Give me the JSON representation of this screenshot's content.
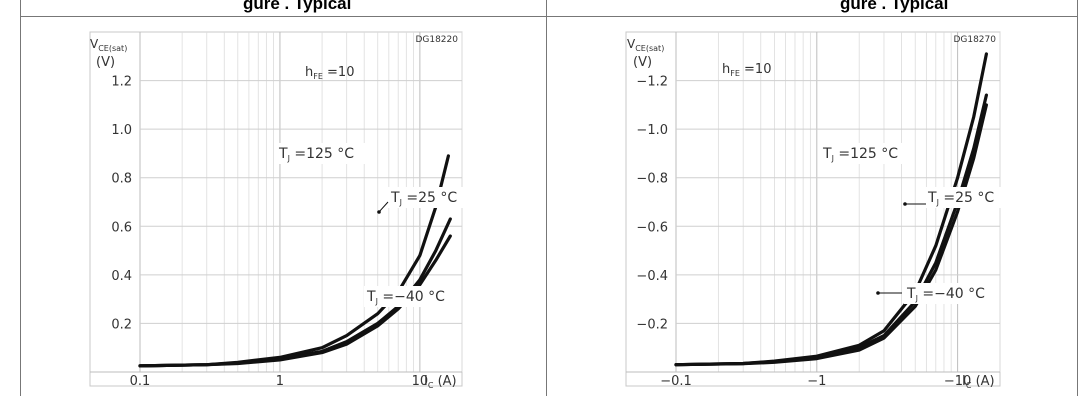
{
  "captions": [
    "gure  . Typical",
    "gure  . Typical"
  ],
  "chart_data": [
    {
      "type": "line",
      "code": "DG18220",
      "ylabel": {
        "main": "V",
        "sub": "CE(sat)",
        "unit": "(V)"
      },
      "xlabel": {
        "main": "I",
        "sub": "C",
        "unit": "(A)"
      },
      "annotation": "h",
      "annotation_sub": "FE",
      "annotation_value": " =10",
      "x_scale": "log",
      "xlim": [
        0.1,
        20
      ],
      "ylim": [
        0,
        1.4
      ],
      "xticks": [
        0.1,
        1,
        10
      ],
      "xtick_labels": [
        "0.1",
        "1",
        "10"
      ],
      "yticks": [
        0.2,
        0.4,
        0.6,
        0.8,
        1.0,
        1.2
      ],
      "ytick_labels": [
        "0.2",
        "0.4",
        "0.6",
        "0.8",
        "1.0",
        "1.2"
      ],
      "grid": true,
      "series": [
        {
          "name": "T_J =125 °C",
          "label_main": "T",
          "label_sub": "J",
          "label_rest": " =125 °C",
          "x": [
            0.1,
            0.3,
            0.5,
            1,
            2,
            3,
            5,
            7,
            10,
            13,
            16
          ],
          "y": [
            0.025,
            0.03,
            0.04,
            0.06,
            0.1,
            0.15,
            0.24,
            0.33,
            0.48,
            0.68,
            0.89
          ]
        },
        {
          "name": "T_J =25 °C",
          "label_main": "T",
          "label_sub": "J",
          "label_rest": " =25 °C",
          "x": [
            0.1,
            0.3,
            0.5,
            1,
            2,
            3,
            5,
            7,
            10,
            13,
            16.5
          ],
          "y": [
            0.025,
            0.03,
            0.037,
            0.055,
            0.085,
            0.125,
            0.2,
            0.27,
            0.38,
            0.5,
            0.63
          ]
        },
        {
          "name": "T_J =-40 °C",
          "label_main": "T",
          "label_sub": "J",
          "label_rest": " =−40 °C",
          "x": [
            0.1,
            0.3,
            0.5,
            1,
            2,
            3,
            5,
            7,
            10,
            13,
            16.5
          ],
          "y": [
            0.025,
            0.03,
            0.035,
            0.05,
            0.08,
            0.115,
            0.19,
            0.26,
            0.36,
            0.46,
            0.56
          ]
        }
      ]
    },
    {
      "type": "line",
      "code": "DG18270",
      "ylabel": {
        "main": "V",
        "sub": "CE(sat)",
        "unit": "(V)"
      },
      "xlabel": {
        "main": "I",
        "sub": "C",
        "unit": "(A)"
      },
      "annotation": "h",
      "annotation_sub": "FE",
      "annotation_value": " =10",
      "x_scale": "log",
      "xlim": [
        -0.1,
        -20
      ],
      "ylim": [
        0,
        -1.4
      ],
      "xticks": [
        -0.1,
        -1,
        -10
      ],
      "xtick_labels": [
        "−0.1",
        "−1",
        "−10"
      ],
      "yticks": [
        -0.2,
        -0.4,
        -0.6,
        -0.8,
        -1.0,
        -1.2
      ],
      "ytick_labels": [
        "−0.2",
        "−0.4",
        "−0.6",
        "−0.8",
        "−1.0",
        "−1.2"
      ],
      "grid": true,
      "series": [
        {
          "name": "T_J =125 °C",
          "label_main": "T",
          "label_sub": "J",
          "label_rest": " =125 °C",
          "x": [
            -0.1,
            -0.3,
            -0.5,
            -1,
            -2,
            -3,
            -5,
            -7,
            -10,
            -13,
            -16
          ],
          "y": [
            -0.03,
            -0.035,
            -0.045,
            -0.065,
            -0.11,
            -0.17,
            -0.33,
            -0.52,
            -0.8,
            -1.05,
            -1.31
          ]
        },
        {
          "name": "T_J =25 °C",
          "label_main": "T",
          "label_sub": "J",
          "label_rest": " =25 °C",
          "x": [
            -0.1,
            -0.3,
            -0.5,
            -1,
            -2,
            -3,
            -5,
            -7,
            -10,
            -13,
            -16
          ],
          "y": [
            -0.03,
            -0.035,
            -0.043,
            -0.06,
            -0.1,
            -0.15,
            -0.29,
            -0.45,
            -0.7,
            -0.92,
            -1.14
          ]
        },
        {
          "name": "T_J =-40 °C",
          "label_main": "T",
          "label_sub": "J",
          "label_rest": " =−40 °C",
          "x": [
            -0.1,
            -0.3,
            -0.5,
            -1,
            -2,
            -3,
            -5,
            -7,
            -10,
            -13,
            -16
          ],
          "y": [
            -0.03,
            -0.034,
            -0.04,
            -0.055,
            -0.09,
            -0.14,
            -0.27,
            -0.42,
            -0.66,
            -0.88,
            -1.1
          ]
        }
      ]
    }
  ]
}
